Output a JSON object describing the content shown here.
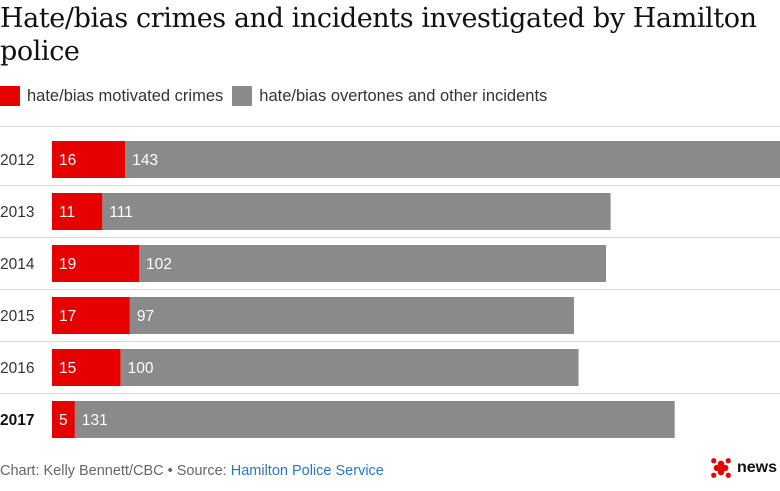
{
  "chart_data": {
    "type": "bar",
    "orientation": "horizontal",
    "stacked": true,
    "title": "Hate/bias crimes and incidents investigated by Hamilton police",
    "categories": [
      "2012",
      "2013",
      "2014",
      "2015",
      "2016",
      "2017"
    ],
    "bold_categories": [
      "2017"
    ],
    "series": [
      {
        "name": "hate/bias motivated crimes",
        "color": "#e60000",
        "values": [
          16,
          11,
          19,
          17,
          15,
          5
        ]
      },
      {
        "name": "hate/bias overtones and other incidents",
        "color": "#8a8a8a",
        "values": [
          143,
          111,
          102,
          97,
          100,
          131
        ]
      }
    ],
    "xlim": [
      0,
      159
    ],
    "grid": false,
    "legend": "top-left"
  },
  "footer": {
    "credit": "Chart: Kelly Bennett/CBC • Source: ",
    "source": "Hamilton Police Service"
  },
  "logo": {
    "text": "news",
    "icon": "cbc-gem-icon",
    "color": "#e60000"
  }
}
